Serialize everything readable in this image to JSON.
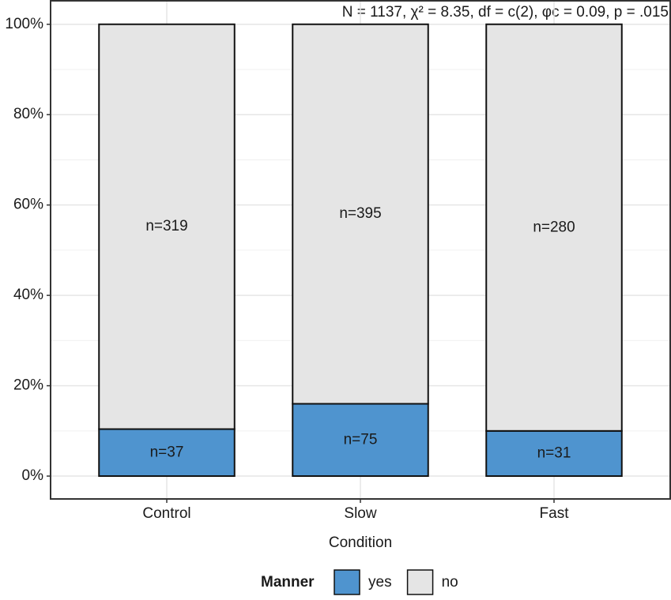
{
  "chart_data": {
    "type": "stacked_bar_percent",
    "subtitle": "N = 1137,  χ² = 8.35,  df = c(2),  φc = 0.09,  p = .015",
    "x_label": "Condition",
    "legend_title": "Manner",
    "categories": [
      "Control",
      "Slow",
      "Fast"
    ],
    "series": [
      {
        "name": "yes",
        "color": "#4f94cf",
        "values": [
          10.4,
          16,
          10
        ],
        "segment_labels": [
          "n=37",
          "n=75",
          "n=31"
        ]
      },
      {
        "name": "no",
        "color": "#e5e5e5",
        "values": [
          89.6,
          84,
          90
        ],
        "segment_labels": [
          "n=319",
          "n=395",
          "n=280"
        ]
      }
    ],
    "ylim": [
      -5.06,
      105.2
    ],
    "yticks": [
      {
        "value": 0,
        "label": "0%"
      },
      {
        "value": 20,
        "label": "20%"
      },
      {
        "value": 40,
        "label": "40%"
      },
      {
        "value": 60,
        "label": "60%"
      },
      {
        "value": 80,
        "label": "80%"
      },
      {
        "value": 100,
        "label": "100%"
      }
    ],
    "minor_grid": [
      10,
      30,
      50,
      70,
      90
    ],
    "grid": true,
    "legend_position": "bottom"
  }
}
